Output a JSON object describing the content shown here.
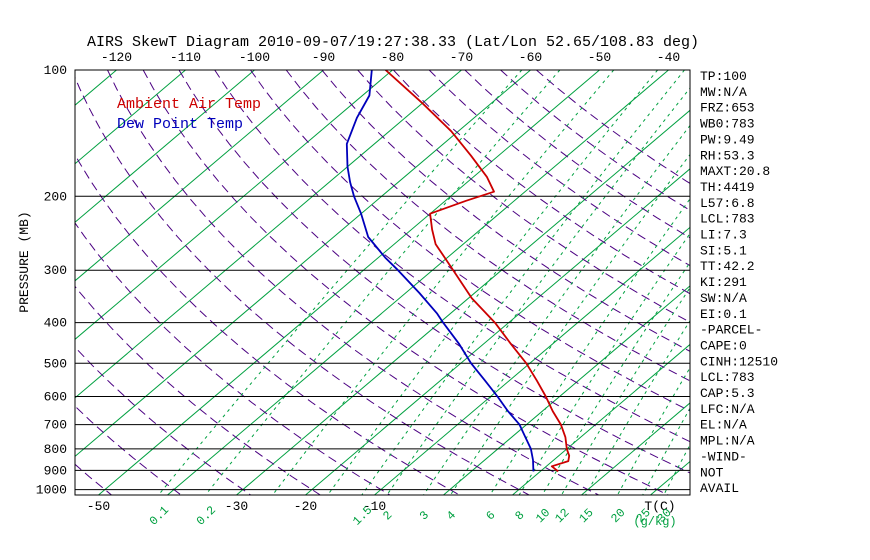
{
  "title": "AIRS SkewT Diagram 2010-09-07/19:27:38.33 (Lat/Lon 52.65/108.83 deg)",
  "legend": {
    "temp": "Ambient Air Temp",
    "dewp": "Dew Point Temp"
  },
  "axes": {
    "pressure_axis_label": "PRESSURE (MB)",
    "pressure_ticks": [
      "100",
      "200",
      "300",
      "400",
      "500",
      "600",
      "700",
      "800",
      "900",
      "1000"
    ],
    "top_temp_ticks": [
      "-120",
      "-110",
      "-100",
      "-90",
      "-80",
      "-70",
      "-60",
      "-50",
      "-40"
    ],
    "bottom_temp_ticks": [
      "-50",
      "-30",
      "-20",
      "-10"
    ],
    "temp_unit_label": "T(C)",
    "mixing_ratio_labels": [
      "0.1",
      "0.2",
      "1.5",
      "2",
      "3",
      "4",
      "6",
      "8",
      "10",
      "12",
      "15",
      "20",
      "25",
      "30"
    ],
    "mixing_unit_label": "(g/kg)"
  },
  "colors": {
    "temp_curve": "#cc0000",
    "dewp_curve": "#0000bb",
    "isotherm": "#00a040",
    "mixing_line": "#00a040",
    "dry_adiabat": "#4b0082",
    "top_axis_text": "#cc0000",
    "frame": "#000000"
  },
  "side_panel": {
    "lines": [
      "TP:100",
      "MW:N/A",
      "FRZ:653",
      "WB0:783",
      "PW:9.49",
      "RH:53.3",
      "MAXT:20.8",
      "TH:4419",
      "L57:6.8",
      "LCL:783",
      "LI:7.3",
      "SI:5.1",
      "TT:42.2",
      "KI:291",
      "SW:N/A",
      "EI:0.1",
      "-PARCEL-",
      "CAPE:0",
      "CINH:12510",
      "LCL:783",
      "CAP:5.3",
      "LFC:N/A",
      "EL:N/A",
      "MPL:N/A",
      "-WIND-",
      "NOT",
      "AVAIL"
    ]
  },
  "chart_data": {
    "type": "line",
    "title": "AIRS SkewT Diagram 2010-09-07/19:27:38.33 (Lat/Lon 52.65/108.83 deg)",
    "xlabel": "Temperature (C), skewed axis",
    "ylabel": "Pressure (MB), logarithmic 100-1000",
    "pressure_range": [
      100,
      1030
    ],
    "surface_temp_axis_range_c": [
      -53,
      36
    ],
    "isotherm_range_c": [
      -130,
      50
    ],
    "isotherm_step_c": 10,
    "dry_adiabat_theta_range_c": [
      -50,
      140
    ],
    "dry_adiabat_step_c": 10,
    "mixing_ratio_lines_g_kg": [
      0.1,
      0.2,
      0.5,
      1,
      1.5,
      2,
      3,
      4,
      6,
      8,
      10,
      12,
      15,
      20,
      25,
      30
    ],
    "series": [
      {
        "name": "Ambient Air Temp",
        "color": "#cc0000",
        "points_p_mb_T_c": [
          [
            100,
            -81
          ],
          [
            120,
            -70
          ],
          [
            140,
            -61
          ],
          [
            160,
            -54
          ],
          [
            180,
            -48
          ],
          [
            195,
            -44.5
          ],
          [
            205,
            -47
          ],
          [
            220,
            -50
          ],
          [
            240,
            -47
          ],
          [
            260,
            -44
          ],
          [
            300,
            -37
          ],
          [
            350,
            -29.5
          ],
          [
            400,
            -22
          ],
          [
            450,
            -16
          ],
          [
            500,
            -10.5
          ],
          [
            550,
            -6
          ],
          [
            600,
            -2
          ],
          [
            650,
            1.5
          ],
          [
            700,
            5
          ],
          [
            750,
            7.8
          ],
          [
            800,
            10
          ],
          [
            830,
            11.5
          ],
          [
            855,
            12.3
          ],
          [
            880,
            10.8
          ],
          [
            905,
            12.6
          ]
        ]
      },
      {
        "name": "Dew Point Temp",
        "color": "#0000bb",
        "points_p_mb_T_c": [
          [
            100,
            -83
          ],
          [
            115,
            -79
          ],
          [
            130,
            -77
          ],
          [
            150,
            -74
          ],
          [
            170,
            -70
          ],
          [
            185,
            -67
          ],
          [
            200,
            -64
          ],
          [
            220,
            -60
          ],
          [
            250,
            -55
          ],
          [
            280,
            -49
          ],
          [
            300,
            -45
          ],
          [
            340,
            -38
          ],
          [
            380,
            -32
          ],
          [
            400,
            -29.5
          ],
          [
            450,
            -23.5
          ],
          [
            500,
            -18.5
          ],
          [
            550,
            -13.5
          ],
          [
            600,
            -9
          ],
          [
            650,
            -5
          ],
          [
            700,
            -1
          ],
          [
            750,
            2
          ],
          [
            800,
            4.8
          ],
          [
            850,
            7
          ],
          [
            905,
            9
          ]
        ]
      }
    ]
  }
}
